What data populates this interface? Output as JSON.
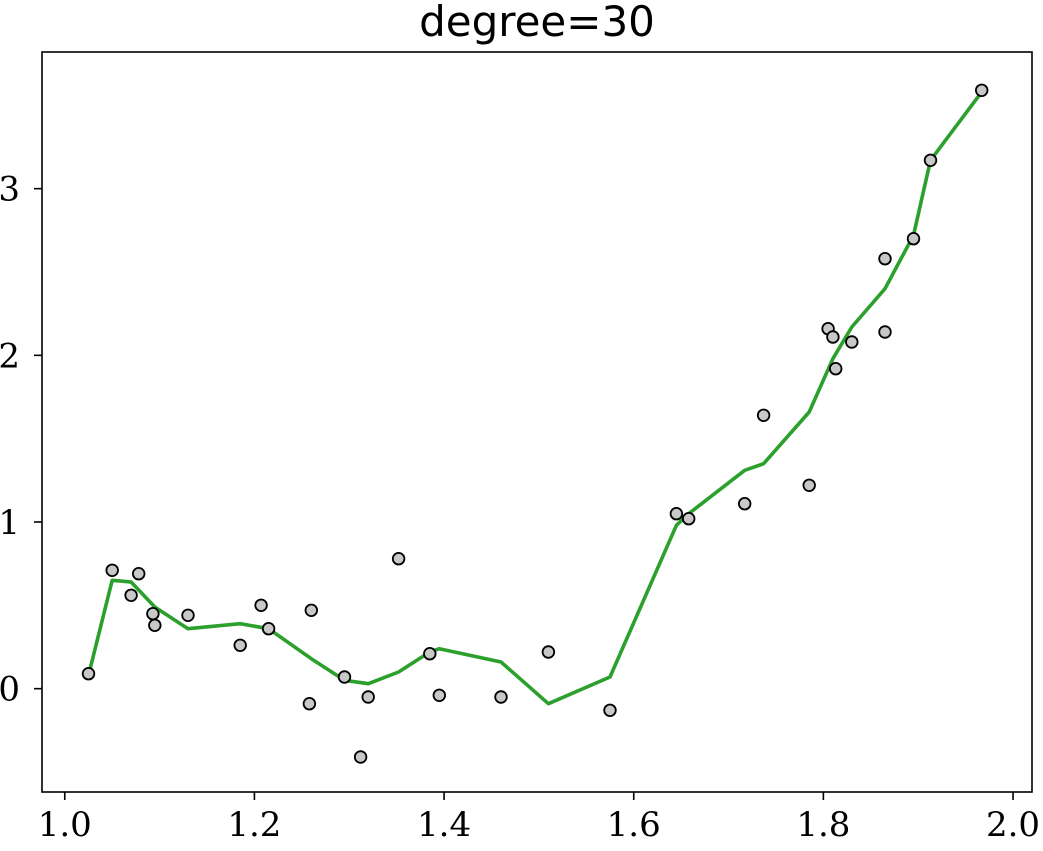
{
  "chart_data": {
    "type": "scatter",
    "title": "degree=30",
    "xlabel": "",
    "ylabel": "",
    "xlim": [
      0.976,
      2.02
    ],
    "ylim": [
      -0.62,
      3.82
    ],
    "x_ticks": [
      1.0,
      1.2,
      1.4,
      1.6,
      1.8,
      2.0
    ],
    "x_tick_labels": [
      "1.0",
      "1.2",
      "1.4",
      "1.6",
      "1.8",
      "2.0"
    ],
    "y_ticks": [
      0,
      1,
      2,
      3
    ],
    "y_tick_labels": [
      "0",
      "1",
      "2",
      "3"
    ],
    "grid": false,
    "series": [
      {
        "kind": "scatter",
        "color": "#c8c8c8",
        "edge_color": "#000000",
        "x": [
          1.025,
          1.05,
          1.07,
          1.078,
          1.093,
          1.095,
          1.13,
          1.185,
          1.207,
          1.215,
          1.258,
          1.26,
          1.295,
          1.312,
          1.32,
          1.352,
          1.385,
          1.395,
          1.46,
          1.51,
          1.575,
          1.645,
          1.658,
          1.717,
          1.737,
          1.785,
          1.805,
          1.81,
          1.813,
          1.83,
          1.865,
          1.865,
          1.895,
          1.913,
          1.967
        ],
        "y": [
          0.09,
          0.71,
          0.56,
          0.69,
          0.45,
          0.38,
          0.44,
          0.26,
          0.5,
          0.36,
          -0.09,
          0.47,
          0.07,
          -0.41,
          -0.05,
          0.78,
          0.21,
          -0.04,
          -0.05,
          0.22,
          -0.13,
          1.05,
          1.02,
          1.11,
          1.64,
          1.22,
          2.16,
          2.11,
          1.92,
          2.08,
          2.58,
          2.14,
          2.7,
          3.17,
          3.59
        ]
      },
      {
        "kind": "line",
        "color": "#2ca02c",
        "x": [
          1.025,
          1.05,
          1.07,
          1.095,
          1.13,
          1.185,
          1.215,
          1.26,
          1.295,
          1.32,
          1.352,
          1.385,
          1.395,
          1.46,
          1.51,
          1.575,
          1.645,
          1.658,
          1.717,
          1.737,
          1.785,
          1.81,
          1.83,
          1.865,
          1.895,
          1.913,
          1.967
        ],
        "y": [
          0.08,
          0.65,
          0.64,
          0.49,
          0.36,
          0.39,
          0.36,
          0.18,
          0.05,
          0.03,
          0.1,
          0.22,
          0.24,
          0.16,
          -0.09,
          0.07,
          0.98,
          1.05,
          1.31,
          1.35,
          1.66,
          1.98,
          2.17,
          2.4,
          2.72,
          3.17,
          3.58
        ]
      }
    ]
  }
}
